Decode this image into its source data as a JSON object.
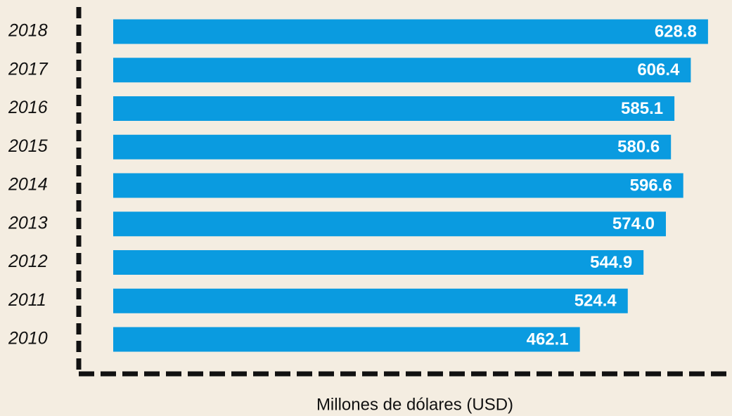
{
  "chart_data": {
    "type": "hbar",
    "x_label": "Millones de dólares (USD)",
    "categories": [
      "2018",
      "2017",
      "2016",
      "2015",
      "2014",
      "2013",
      "2012",
      "2011",
      "2010"
    ],
    "values": [
      628.8,
      606.4,
      585.1,
      580.6,
      596.6,
      574.0,
      544.9,
      524.4,
      462.1
    ],
    "value_labels": [
      "628.8",
      "606.4",
      "585.1",
      "580.6",
      "596.6",
      "574.0",
      "544.9",
      "524.4",
      "462.1"
    ],
    "color": "#0a9be0",
    "xlim": [
      -145,
      660
    ]
  }
}
